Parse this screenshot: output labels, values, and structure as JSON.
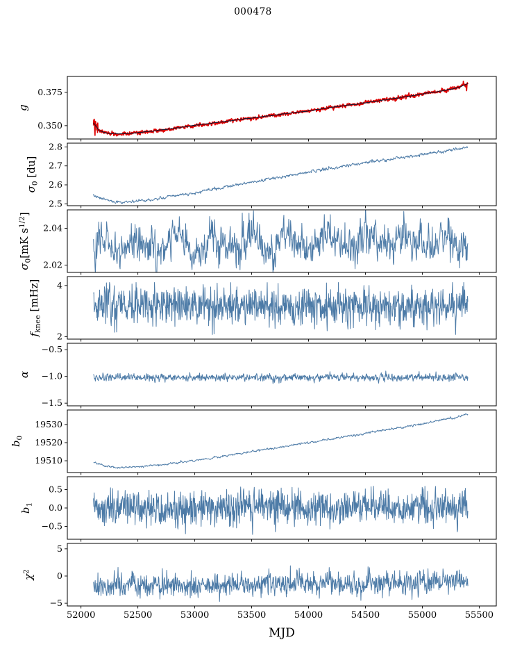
{
  "figure": {
    "title": "000478",
    "xlabel": "MJD",
    "background": "#ffffff",
    "frame_color": "#000000",
    "colors": {
      "line": "#4d7ba7",
      "data_red": "#dd0000",
      "fit": "#16162e"
    },
    "x": {
      "label": "MJD",
      "lim": [
        51880,
        55650
      ],
      "ticks": [
        52000,
        52500,
        53000,
        53500,
        54000,
        54500,
        55000,
        55500
      ],
      "tick_labels": [
        "52000",
        "52500",
        "53000",
        "53500",
        "54000",
        "54500",
        "55000",
        "55500"
      ],
      "data_range": [
        52110,
        55400
      ]
    }
  },
  "chart_data": [
    {
      "id": "g",
      "type": "line",
      "ylabel": "g",
      "ylabel_rich": [
        {
          "t": "g",
          "it": true
        }
      ],
      "ylim": [
        0.34,
        0.387
      ],
      "ytick_vals": [
        0.35,
        0.375
      ],
      "yticks": [
        "0.350",
        "0.375"
      ],
      "series": [
        {
          "name": "g-measured",
          "color": "#dd0000",
          "width": 1.7,
          "n": 1500,
          "seed": 101,
          "noise": 0.0006,
          "smooth": 0.5,
          "trend_x": [
            52110,
            52160,
            52230,
            52330,
            52450,
            52600,
            52800,
            53000,
            53200,
            53400,
            53600,
            53800,
            54000,
            54200,
            54400,
            54600,
            54800,
            55000,
            55150,
            55300,
            55400
          ],
          "trend_y": [
            0.352,
            0.3462,
            0.3444,
            0.3438,
            0.3442,
            0.3456,
            0.3478,
            0.3502,
            0.3524,
            0.3547,
            0.3568,
            0.359,
            0.3611,
            0.3638,
            0.366,
            0.3685,
            0.371,
            0.3738,
            0.3758,
            0.3782,
            0.3815
          ],
          "bursts": [
            {
              "x0": 52110,
              "x1": 52148,
              "sigma": 0.0028
            }
          ],
          "spikes": [
            {
              "x": 55388,
              "dy": -0.0048
            },
            {
              "x": 55360,
              "dy": 0.0018
            }
          ]
        },
        {
          "name": "g-fit",
          "color": "#16162e",
          "width": 1.1,
          "n": 400,
          "seed": 1,
          "noise": 0.00012,
          "smooth": 0.3,
          "trend_x": [
            52110,
            52160,
            52230,
            52330,
            52450,
            52600,
            52800,
            53000,
            53200,
            53400,
            53600,
            53800,
            54000,
            54200,
            54400,
            54600,
            54800,
            55000,
            55150,
            55300,
            55400
          ],
          "trend_y": [
            0.352,
            0.3462,
            0.3444,
            0.3438,
            0.3442,
            0.3456,
            0.3478,
            0.3502,
            0.3524,
            0.3547,
            0.3568,
            0.359,
            0.3611,
            0.3638,
            0.366,
            0.3685,
            0.371,
            0.3738,
            0.3758,
            0.3782,
            0.3815
          ]
        }
      ]
    },
    {
      "id": "sigma0-du",
      "type": "line",
      "ylabel": "σ0 [du]",
      "ylabel_rich": [
        {
          "t": "σ",
          "it": true
        },
        {
          "t": "0",
          "sub": true
        },
        {
          "t": " [du]"
        }
      ],
      "ylim": [
        2.49,
        2.82
      ],
      "ytick_vals": [
        2.5,
        2.6,
        2.7,
        2.8
      ],
      "yticks": [
        "2.5",
        "2.6",
        "2.7",
        "2.8"
      ],
      "series": [
        {
          "name": "sigma0-du",
          "color": "#4d7ba7",
          "width": 1.0,
          "n": 900,
          "seed": 202,
          "noise": 0.0035,
          "smooth": 0.5,
          "trend_x": [
            52110,
            52200,
            52300,
            52420,
            52550,
            52700,
            52900,
            53100,
            53300,
            53500,
            53700,
            53900,
            54100,
            54300,
            54500,
            54700,
            54900,
            55100,
            55250,
            55400
          ],
          "trend_y": [
            2.545,
            2.522,
            2.512,
            2.511,
            2.516,
            2.528,
            2.548,
            2.57,
            2.592,
            2.614,
            2.636,
            2.658,
            2.678,
            2.698,
            2.716,
            2.734,
            2.752,
            2.77,
            2.784,
            2.798
          ]
        }
      ]
    },
    {
      "id": "sigma0-mk",
      "type": "line",
      "ylabel": "σ0 [mK s^1/2]",
      "ylabel_rich": [
        {
          "t": "σ",
          "it": true
        },
        {
          "t": "0",
          "sub": true
        },
        {
          "t": "[mK s"
        },
        {
          "t": "1/2",
          "sup": true
        },
        {
          "t": "]"
        }
      ],
      "ylim": [
        2.016,
        2.05
      ],
      "ytick_vals": [
        2.02,
        2.04
      ],
      "yticks": [
        "2.02",
        "2.04"
      ],
      "series": [
        {
          "name": "sigma0-mk",
          "color": "#4d7ba7",
          "width": 1.0,
          "n": 1000,
          "seed": 303,
          "noise": 0.0045,
          "smooth": 0.45,
          "osc": {
            "amp": 0.0035,
            "period": 340,
            "phase": 0.8
          },
          "trend_x": [
            52110,
            55400
          ],
          "trend_y": [
            2.031,
            2.033
          ],
          "spikes": [
            {
              "x": 52125,
              "dy": -0.009
            }
          ]
        }
      ]
    },
    {
      "id": "fknee",
      "type": "line",
      "ylabel": "f_knee [mHz]",
      "ylabel_rich": [
        {
          "t": "f",
          "it": true
        },
        {
          "t": "knee",
          "sub": true
        },
        {
          "t": " [mHz]"
        }
      ],
      "ylim": [
        1.9,
        4.35
      ],
      "ytick_vals": [
        2,
        4
      ],
      "yticks": [
        "2",
        "4"
      ],
      "series": [
        {
          "name": "fknee",
          "color": "#4d7ba7",
          "width": 1.0,
          "n": 1100,
          "seed": 404,
          "noise": 0.38,
          "smooth": 0.1,
          "clip": [
            2.08,
            4.12
          ],
          "trend_x": [
            52110,
            55400
          ],
          "trend_y": [
            3.25,
            3.15
          ]
        }
      ]
    },
    {
      "id": "alpha",
      "type": "line",
      "ylabel": "α",
      "ylabel_rich": [
        {
          "t": "α",
          "it": true
        }
      ],
      "ylim": [
        -1.55,
        -0.38
      ],
      "ytick_vals": [
        -1.5,
        -1.0,
        -0.5
      ],
      "yticks": [
        "−1.5",
        "−1.0",
        "−0.5"
      ],
      "series": [
        {
          "name": "alpha",
          "color": "#4d7ba7",
          "width": 1.0,
          "n": 1000,
          "seed": 505,
          "noise": 0.035,
          "smooth": 0.2,
          "trend_x": [
            52110,
            55400
          ],
          "trend_y": [
            -1.02,
            -1.02
          ],
          "spikes": [
            {
              "x": 54680,
              "dy": 0.1
            },
            {
              "x": 52600,
              "dy": -0.09
            },
            {
              "x": 55350,
              "dy": 0.08
            }
          ]
        }
      ]
    },
    {
      "id": "b0",
      "type": "line",
      "ylabel": "b0",
      "ylabel_rich": [
        {
          "t": "b",
          "it": true
        },
        {
          "t": "0",
          "sub": true
        }
      ],
      "ylim": [
        19503.5,
        19538
      ],
      "ytick_vals": [
        19510,
        19520,
        19530
      ],
      "yticks": [
        "19510",
        "19520",
        "19530"
      ],
      "series": [
        {
          "name": "b0",
          "color": "#4d7ba7",
          "width": 1.0,
          "n": 900,
          "seed": 606,
          "noise": 0.25,
          "smooth": 0.5,
          "trend_x": [
            52110,
            52200,
            52320,
            52450,
            52600,
            52800,
            53000,
            53250,
            53500,
            53750,
            54000,
            54250,
            54500,
            54750,
            55000,
            55200,
            55400
          ],
          "trend_y": [
            19509.0,
            19507.2,
            19506.3,
            19506.5,
            19507.2,
            19508.5,
            19510.2,
            19512.5,
            19515.0,
            19517.5,
            19520.0,
            19522.5,
            19525.2,
            19527.8,
            19530.5,
            19532.8,
            19535.5
          ]
        }
      ]
    },
    {
      "id": "b1",
      "type": "line",
      "ylabel": "b1",
      "ylabel_rich": [
        {
          "t": "b",
          "it": true
        },
        {
          "t": "1",
          "sub": true
        }
      ],
      "ylim": [
        -0.85,
        0.85
      ],
      "ytick_vals": [
        -0.5,
        0.0,
        0.5
      ],
      "yticks": [
        "−0.5",
        "0.0",
        "0.5"
      ],
      "series": [
        {
          "name": "b1",
          "color": "#4d7ba7",
          "width": 1.0,
          "n": 1100,
          "seed": 707,
          "noise": 0.23,
          "smooth": 0.05,
          "clip": [
            -0.72,
            0.72
          ],
          "trend_x": [
            52110,
            55400
          ],
          "trend_y": [
            0.02,
            0.02
          ]
        }
      ]
    },
    {
      "id": "chi2",
      "type": "line",
      "ylabel": "χ^2",
      "ylabel_rich": [
        {
          "t": "χ",
          "it": true
        },
        {
          "t": "2",
          "sup": true
        }
      ],
      "ylim": [
        -5.5,
        6
      ],
      "ytick_vals": [
        -5,
        0,
        5
      ],
      "yticks": [
        "−5",
        "0",
        "5"
      ],
      "series": [
        {
          "name": "chi2",
          "color": "#4d7ba7",
          "width": 1.0,
          "n": 1100,
          "seed": 808,
          "noise": 1.0,
          "smooth": 0.25,
          "clip": [
            -4.9,
            1.9
          ],
          "trend_x": [
            52110,
            53000,
            54000,
            55000,
            55400
          ],
          "trend_y": [
            -1.7,
            -1.6,
            -1.5,
            -1.2,
            -0.6
          ]
        }
      ]
    }
  ]
}
